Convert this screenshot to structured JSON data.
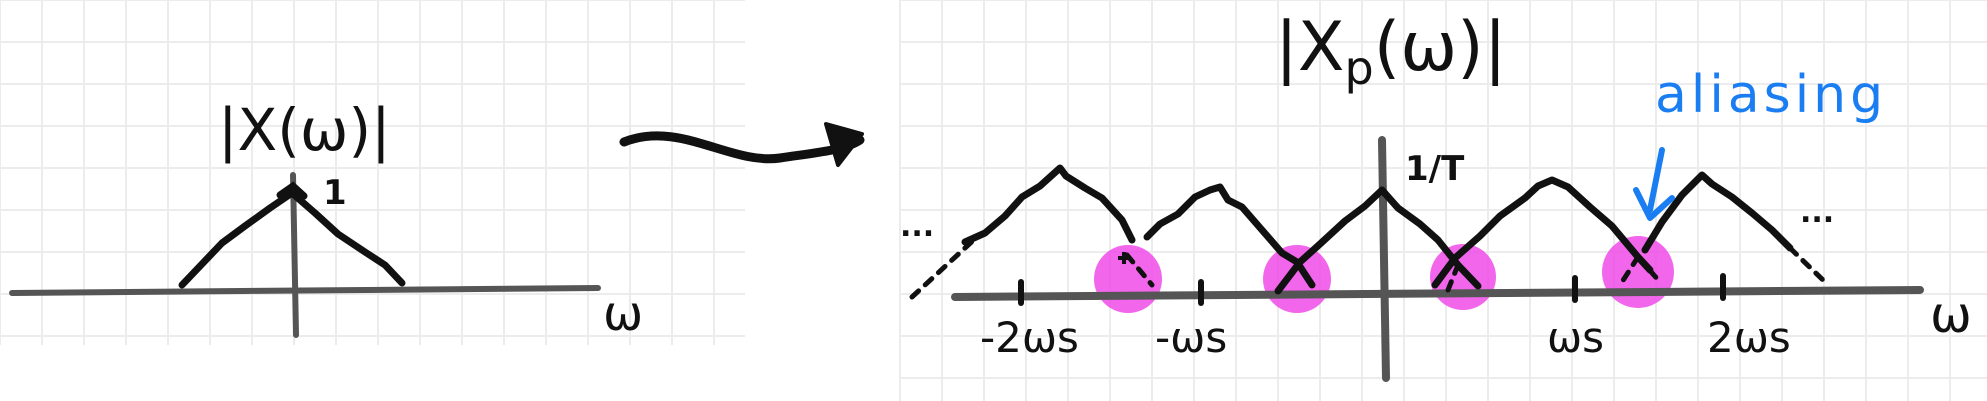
{
  "left_plot": {
    "title": "|X(ω)|",
    "peak_label": "1",
    "axis_label": "ω"
  },
  "arrow": {
    "icon": "arrow-right-icon"
  },
  "right_plot": {
    "title": "|X",
    "title_sub": "p",
    "title_tail": "(ω)|",
    "peak_label": "1/T",
    "axis_label": "ω",
    "ellipsis_left": "...",
    "ellipsis_right": "...",
    "ticks": [
      "-2ωs",
      "-ωs",
      "ωs",
      "2ωs"
    ],
    "annotation": "aliasing"
  },
  "colors": {
    "ink": "#111111",
    "axis": "#555555",
    "aliasing_highlight": "#f04be8",
    "annotation": "#1a7ef2",
    "grid": "#ececec"
  }
}
